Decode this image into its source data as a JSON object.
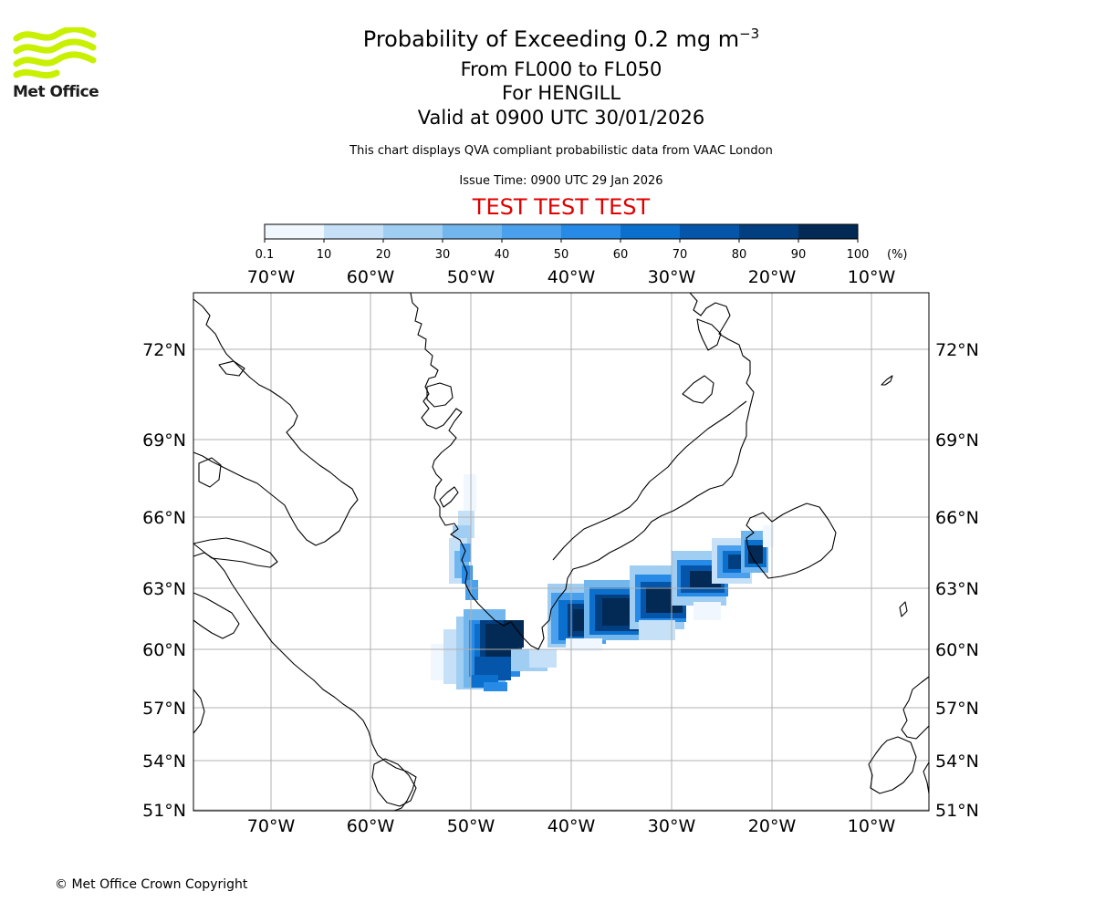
{
  "logo": {
    "name": "Met Office",
    "color": "#c8f000"
  },
  "title": {
    "line1_prefix": "Probability of Exceeding 0.2 mg m",
    "line1_superscript": "−3",
    "line2": "From FL000 to FL050",
    "line3": "For HENGILL",
    "line4": "Valid at 0900 UTC 30/01/2026"
  },
  "subtitle": "This chart displays QVA compliant probabilistic data from VAAC London",
  "issue_time": "Issue Time: 0900 UTC 29 Jan 2026",
  "test_banner": "TEST TEST TEST",
  "colorbar": {
    "ticks": [
      "0.1",
      "10",
      "20",
      "30",
      "40",
      "50",
      "60",
      "70",
      "80",
      "90",
      "100"
    ],
    "unit": "(%)",
    "colors": [
      "#f0f7ff",
      "#c6e1f7",
      "#a0cdf2",
      "#72b6ee",
      "#4aa0ec",
      "#268ae6",
      "#0b6fcd",
      "#0556aa",
      "#023f80",
      "#022a55"
    ]
  },
  "map": {
    "lon_labels": [
      "70°W",
      "60°W",
      "50°W",
      "40°W",
      "30°W",
      "20°W",
      "10°W"
    ],
    "lat_labels": [
      "72°N",
      "69°N",
      "66°N",
      "63°N",
      "60°N",
      "57°N",
      "54°N",
      "51°N"
    ],
    "extent": {
      "lon_min": -77.7,
      "lon_max": -5.3,
      "lat_min": 51,
      "lat_max": 74
    }
  },
  "copyright": "© Met Office Crown Copyright"
}
